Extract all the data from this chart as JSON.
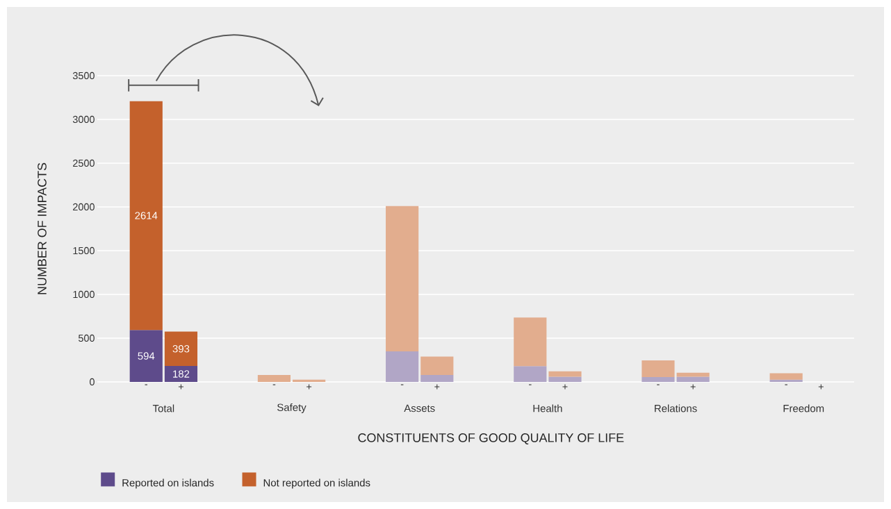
{
  "chart_data": {
    "type": "bar",
    "stacked": true,
    "xlabel": "CONSTITUENTS OF GOOD QUALITY OF LIFE",
    "ylabel": "NUMBER OF IMPACTS",
    "categories": [
      "-",
      "+",
      "-",
      "+",
      "-",
      "+",
      "-",
      "+",
      "-",
      "+",
      "-",
      "+"
    ],
    "series": [
      {
        "name": "Reported on islands",
        "color": "#5e4b8b",
        "colors": [
          "#5e4b8b",
          "#5e4b8b",
          "#b1a6c6",
          "#b1a6c6",
          "#b1a6c6",
          "#b1a6c6",
          "#b1a6c6",
          "#b1a6c6",
          "#b1a6c6",
          "#b1a6c6",
          "#b1a6c6",
          "#b1a6c6"
        ],
        "values": [
          594,
          182,
          null,
          0,
          350,
          80,
          180,
          60,
          55,
          60,
          25,
          null
        ],
        "value_labels": [
          "594",
          "182",
          null,
          null,
          null,
          null,
          null,
          null,
          null,
          null,
          null,
          null
        ]
      },
      {
        "name": "Not reported on islands",
        "color": "#c4612c",
        "colors": [
          "#c4612c",
          "#c4612c",
          "#e2ad8e",
          "#e2ad8e",
          "#e2ad8e",
          "#e2ad8e",
          "#e2ad8e",
          "#e2ad8e",
          "#e2ad8e",
          "#e2ad8e",
          "#e2ad8e",
          "#e2ad8e"
        ],
        "values": [
          2614,
          393,
          80,
          25,
          1660,
          210,
          555,
          60,
          190,
          45,
          75,
          0
        ],
        "value_labels": [
          "2614",
          "393",
          null,
          null,
          null,
          null,
          null,
          null,
          null,
          null,
          null,
          null
        ]
      }
    ],
    "ylim": [
      0,
      3500
    ],
    "yticks": [
      0,
      500,
      1000,
      1500,
      2000,
      2500,
      3000,
      3500
    ],
    "grid": "y",
    "legend": "bottom",
    "annotations": [
      "Total",
      "Safety",
      "Assets",
      "Health",
      "Relations",
      "Freedom"
    ]
  }
}
